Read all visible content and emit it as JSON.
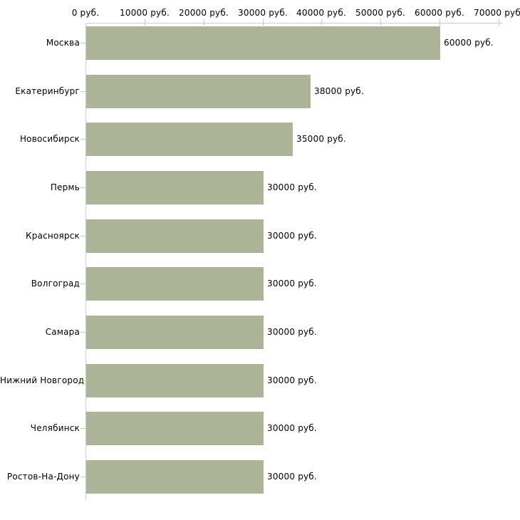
{
  "chart_data": {
    "type": "bar",
    "orientation": "horizontal",
    "title": "",
    "xlabel": "",
    "ylabel": "",
    "categories": [
      "Москва",
      "Екатеринбург",
      "Новосибирск",
      "Пермь",
      "Красноярск",
      "Волгоград",
      "Самара",
      "Нижний Новгород",
      "Челябинск",
      "Ростов-На-Дону"
    ],
    "values": [
      60000,
      38000,
      35000,
      30000,
      30000,
      30000,
      30000,
      30000,
      30000,
      30000
    ],
    "value_labels": [
      "60000 руб.",
      "38000 руб.",
      "35000 руб.",
      "30000 руб.",
      "30000 руб.",
      "30000 руб.",
      "30000 руб.",
      "30000 руб.",
      "30000 руб.",
      "30000 руб."
    ],
    "x_ticks": [
      0,
      10000,
      20000,
      30000,
      40000,
      50000,
      60000,
      70000
    ],
    "x_tick_labels": [
      "0 руб.",
      "10000 руб.",
      "20000 руб.",
      "30000 руб.",
      "40000 руб.",
      "50000 руб.",
      "60000 руб.",
      "70000 руб."
    ],
    "xlim": [
      0,
      70000
    ],
    "grid": false,
    "legend": "none",
    "colors": {
      "bar": "#abb497",
      "axis_line": "#cacaca",
      "tick": "#c9c9a0",
      "text": "#000000",
      "background": "#ffffff"
    }
  }
}
